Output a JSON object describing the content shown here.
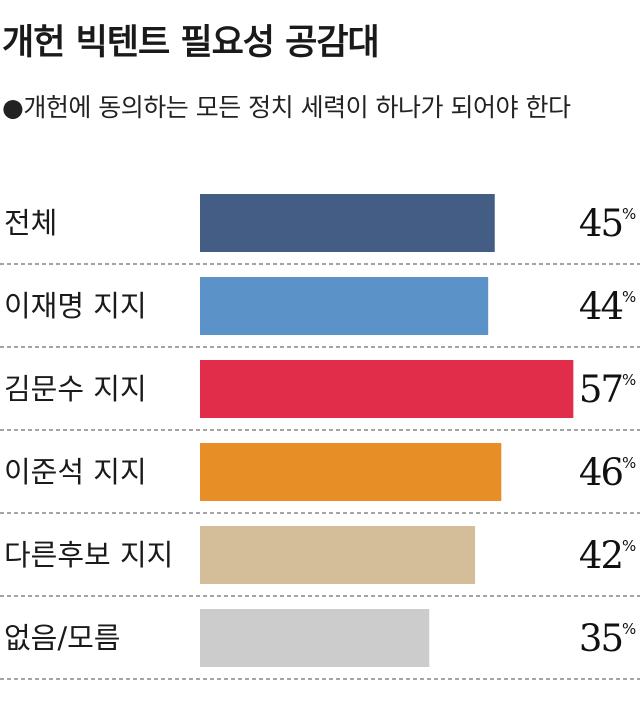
{
  "chart_data": {
    "type": "bar",
    "orientation": "horizontal",
    "title": "개헌 빅텐트 필요성 공감대",
    "subtitle": "●개헌에 동의하는 모든 정치 세력이 하나가 되어야 한다",
    "unit": "%",
    "categories": [
      "전체",
      "이재명 지지",
      "김문수 지지",
      "이준석 지지",
      "다른후보 지지",
      "없음/모름"
    ],
    "values": [
      45,
      44,
      57,
      46,
      42,
      35
    ],
    "colors": [
      "#435d84",
      "#5b93c8",
      "#e22d4a",
      "#e88e27",
      "#d4bd99",
      "#cccccc"
    ],
    "grid": false,
    "legend": "none"
  }
}
